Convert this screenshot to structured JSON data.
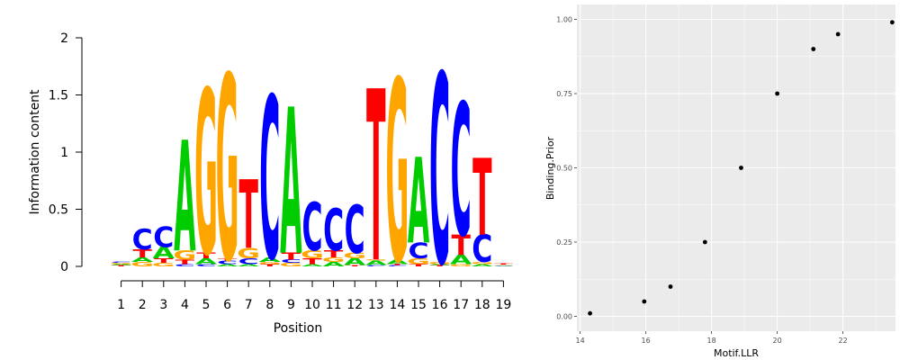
{
  "colors": {
    "A": "#00cc00",
    "C": "#0000ff",
    "G": "#ffa500",
    "T": "#ff0000",
    "panel_bg": "#ebebeb",
    "grid": "#ffffff",
    "point": "#000000"
  },
  "chart_data": [
    {
      "type": "sequence-logo",
      "xlabel": "Position",
      "ylabel": "Information content",
      "ylim": [
        0,
        2
      ],
      "yticks": [
        "0",
        "0.5",
        "1",
        "1.5",
        "2"
      ],
      "positions": [
        "1",
        "2",
        "3",
        "4",
        "5",
        "6",
        "7",
        "8",
        "9",
        "10",
        "11",
        "12",
        "13",
        "14",
        "15",
        "16",
        "17",
        "18",
        "19"
      ],
      "stacks": [
        [
          {
            "l": "T",
            "h": 0.01
          },
          {
            "l": "A",
            "h": 0.01
          },
          {
            "l": "G",
            "h": 0.01
          },
          {
            "l": "C",
            "h": 0.01
          }
        ],
        [
          {
            "l": "G",
            "h": 0.04
          },
          {
            "l": "A",
            "h": 0.04
          },
          {
            "l": "T",
            "h": 0.07
          },
          {
            "l": "C",
            "h": 0.18
          }
        ],
        [
          {
            "l": "G",
            "h": 0.03
          },
          {
            "l": "T",
            "h": 0.04
          },
          {
            "l": "A",
            "h": 0.1
          },
          {
            "l": "C",
            "h": 0.18
          }
        ],
        [
          {
            "l": "C",
            "h": 0.02
          },
          {
            "l": "T",
            "h": 0.04
          },
          {
            "l": "G",
            "h": 0.08
          },
          {
            "l": "A",
            "h": 0.97
          }
        ],
        [
          {
            "l": "C",
            "h": 0.02
          },
          {
            "l": "A",
            "h": 0.05
          },
          {
            "l": "T",
            "h": 0.05
          },
          {
            "l": "G",
            "h": 1.44
          }
        ],
        [
          {
            "l": "A",
            "h": 0.02
          },
          {
            "l": "C",
            "h": 0.03
          },
          {
            "l": "T",
            "h": 0.02
          },
          {
            "l": "G",
            "h": 1.62
          }
        ],
        [
          {
            "l": "A",
            "h": 0.02
          },
          {
            "l": "C",
            "h": 0.05
          },
          {
            "l": "G",
            "h": 0.09
          },
          {
            "l": "T",
            "h": 0.6
          }
        ],
        [
          {
            "l": "T",
            "h": 0.02
          },
          {
            "l": "G",
            "h": 0.02
          },
          {
            "l": "A",
            "h": 0.04
          },
          {
            "l": "C",
            "h": 1.42
          }
        ],
        [
          {
            "l": "G",
            "h": 0.03
          },
          {
            "l": "C",
            "h": 0.03
          },
          {
            "l": "T",
            "h": 0.06
          },
          {
            "l": "A",
            "h": 1.28
          }
        ],
        [
          {
            "l": "A",
            "h": 0.02
          },
          {
            "l": "T",
            "h": 0.05
          },
          {
            "l": "G",
            "h": 0.07
          },
          {
            "l": "C",
            "h": 0.42
          }
        ],
        [
          {
            "l": "A",
            "h": 0.04
          },
          {
            "l": "G",
            "h": 0.04
          },
          {
            "l": "T",
            "h": 0.06
          },
          {
            "l": "C",
            "h": 0.37
          }
        ],
        [
          {
            "l": "T",
            "h": 0.01
          },
          {
            "l": "A",
            "h": 0.06
          },
          {
            "l": "G",
            "h": 0.05
          },
          {
            "l": "C",
            "h": 0.42
          }
        ],
        [
          {
            "l": "C",
            "h": 0.01
          },
          {
            "l": "A",
            "h": 0.04
          },
          {
            "l": "G",
            "h": 0.01
          },
          {
            "l": "T",
            "h": 1.5
          }
        ],
        [
          {
            "l": "C",
            "h": 0.01
          },
          {
            "l": "T",
            "h": 0.01
          },
          {
            "l": "A",
            "h": 0.04
          },
          {
            "l": "G",
            "h": 1.59
          }
        ],
        [
          {
            "l": "T",
            "h": 0.02
          },
          {
            "l": "G",
            "h": 0.05
          },
          {
            "l": "C",
            "h": 0.14
          },
          {
            "l": "A",
            "h": 0.75
          }
        ],
        [
          {
            "l": "T",
            "h": 0.01
          },
          {
            "l": "A",
            "h": 0.01
          },
          {
            "l": "G",
            "h": 0.02
          },
          {
            "l": "C",
            "h": 1.66
          }
        ],
        [
          {
            "l": "G",
            "h": 0.02
          },
          {
            "l": "A",
            "h": 0.08
          },
          {
            "l": "T",
            "h": 0.18
          },
          {
            "l": "C",
            "h": 1.16
          }
        ],
        [
          {
            "l": "A",
            "h": 0.02
          },
          {
            "l": "G",
            "h": 0.02
          },
          {
            "l": "C",
            "h": 0.24
          },
          {
            "l": "T",
            "h": 0.67
          }
        ],
        [
          {
            "l": "A",
            "h": 0.005
          },
          {
            "l": "C",
            "h": 0.005
          },
          {
            "l": "G",
            "h": 0.005
          },
          {
            "l": "T",
            "h": 0.01
          }
        ]
      ]
    },
    {
      "type": "scatter",
      "xlabel": "Motif.LLR",
      "ylabel": "Binding.Prior",
      "xlim": [
        13.9,
        23.6
      ],
      "ylim": [
        -0.05,
        1.05
      ],
      "xticks": [
        14,
        16,
        18,
        20,
        22
      ],
      "xtick_labels": [
        "14",
        "16",
        "18",
        "20",
        "22"
      ],
      "yticks": [
        0,
        0.25,
        0.5,
        0.75,
        1
      ],
      "ytick_labels": [
        "0.00",
        "0.25",
        "0.50",
        "0.75",
        "1.00"
      ],
      "grid": true,
      "points": [
        {
          "x": 14.3,
          "y": 0.01
        },
        {
          "x": 15.95,
          "y": 0.05
        },
        {
          "x": 16.75,
          "y": 0.1
        },
        {
          "x": 17.8,
          "y": 0.25
        },
        {
          "x": 18.9,
          "y": 0.5
        },
        {
          "x": 20.0,
          "y": 0.75
        },
        {
          "x": 21.1,
          "y": 0.9
        },
        {
          "x": 21.85,
          "y": 0.95
        },
        {
          "x": 23.5,
          "y": 0.99
        }
      ]
    }
  ]
}
